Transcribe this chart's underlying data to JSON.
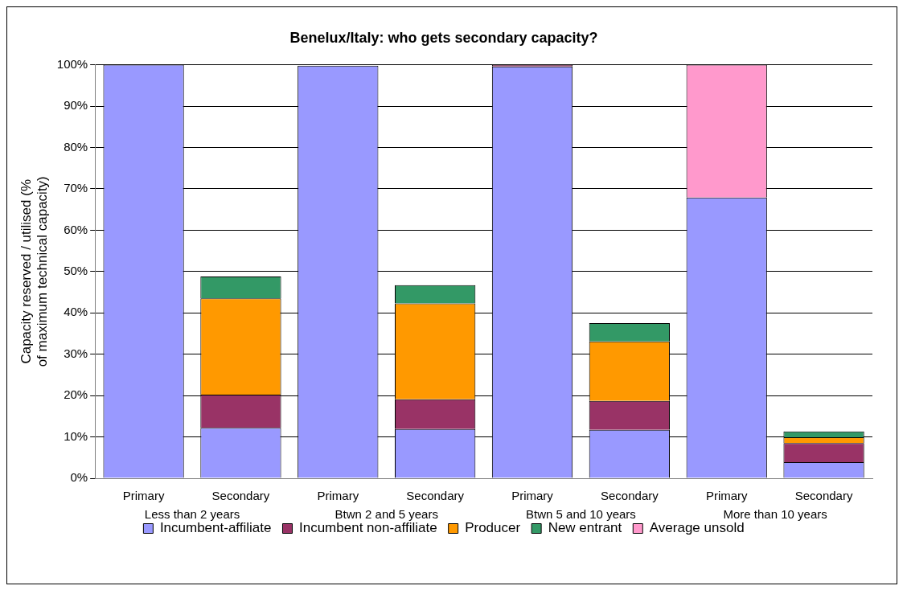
{
  "chart_data": {
    "type": "bar",
    "title": "Benelux/Italy: who gets secondary capacity?",
    "ylabel": "Capacity reserved / utilised (% of maximum technical capacity)",
    "categories": [
      "Primary",
      "Secondary",
      "Primary",
      "Secondary",
      "Primary",
      "Secondary",
      "Primary",
      "Secondary"
    ],
    "annotations": [
      "Less than 2 years",
      "Btwn 2 and 5 years",
      "Btwn 5 and 10 years",
      "More than 10 years"
    ],
    "stacked": true,
    "series": [
      {
        "name": "Incumbent-affiliate",
        "color": "#9999ff",
        "values": [
          100,
          12.2,
          99.8,
          11.9,
          99.6,
          11.7,
          67.9,
          3.9
        ]
      },
      {
        "name": "Incumbent non-affiliate",
        "color": "#993366",
        "values": [
          0,
          8.0,
          null,
          7.2,
          0.4,
          7.0,
          0,
          4.6
        ]
      },
      {
        "name": "Producer",
        "color": "#ff9900",
        "values": [
          0,
          23.3,
          0,
          23.2,
          0,
          14.4,
          0,
          1.4
        ]
      },
      {
        "name": "New entrant",
        "color": "#339966",
        "values": [
          0,
          5.3,
          0,
          4.4,
          0,
          4.4,
          0,
          1.4
        ]
      },
      {
        "name": "Average unsold",
        "color": "#ff99cc",
        "values": [
          0,
          0,
          0,
          0,
          0,
          0,
          32.1,
          0
        ]
      }
    ],
    "ylim": [
      0,
      100
    ],
    "yticks": [
      {
        "value": 0,
        "label": "0%"
      },
      {
        "value": 10,
        "label": "10%"
      },
      {
        "value": 20,
        "label": "20%"
      },
      {
        "value": 30,
        "label": "30%"
      },
      {
        "value": 40,
        "label": "40%"
      },
      {
        "value": 50,
        "label": "50%"
      },
      {
        "value": 60,
        "label": "60%"
      },
      {
        "value": 70,
        "label": "70%"
      },
      {
        "value": 80,
        "label": "80%"
      },
      {
        "value": 90,
        "label": "90%"
      },
      {
        "value": 100,
        "label": "100%"
      }
    ],
    "grid": "y",
    "legend": "bottom"
  }
}
